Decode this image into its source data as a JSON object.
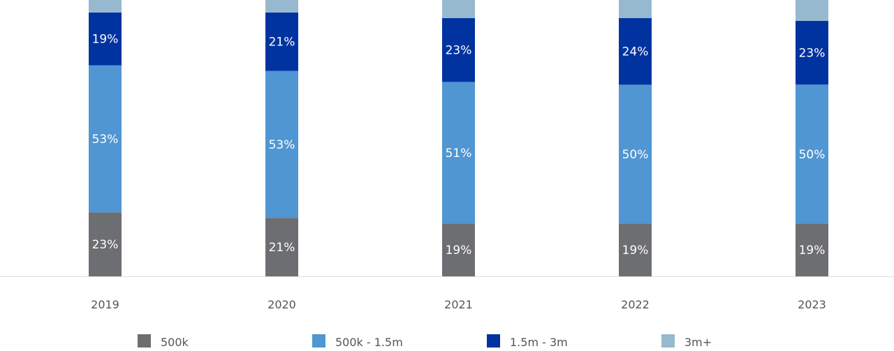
{
  "chart_data": {
    "type": "bar",
    "stacked": true,
    "categories": [
      "2019",
      "2020",
      "2021",
      "2022",
      "2023"
    ],
    "series": [
      {
        "name": "500k",
        "color": "#6d6e71",
        "values": [
          23,
          21,
          19,
          19,
          19
        ]
      },
      {
        "name": "500k - 1.5m",
        "color": "#5096d2",
        "values": [
          53,
          53,
          51,
          50,
          50
        ]
      },
      {
        "name": "1.5m - 3m",
        "color": "#0033a0",
        "values": [
          19,
          21,
          23,
          24,
          23
        ]
      },
      {
        "name": "3m+",
        "color": "#96b9cf",
        "values": [
          5,
          5,
          7,
          7,
          8
        ]
      }
    ],
    "value_suffix": "%",
    "labeled_series": [
      "500k",
      "500k - 1.5m",
      "1.5m - 3m"
    ],
    "ylim": [
      0,
      100
    ],
    "grid": false,
    "legend_position": "bottom"
  }
}
